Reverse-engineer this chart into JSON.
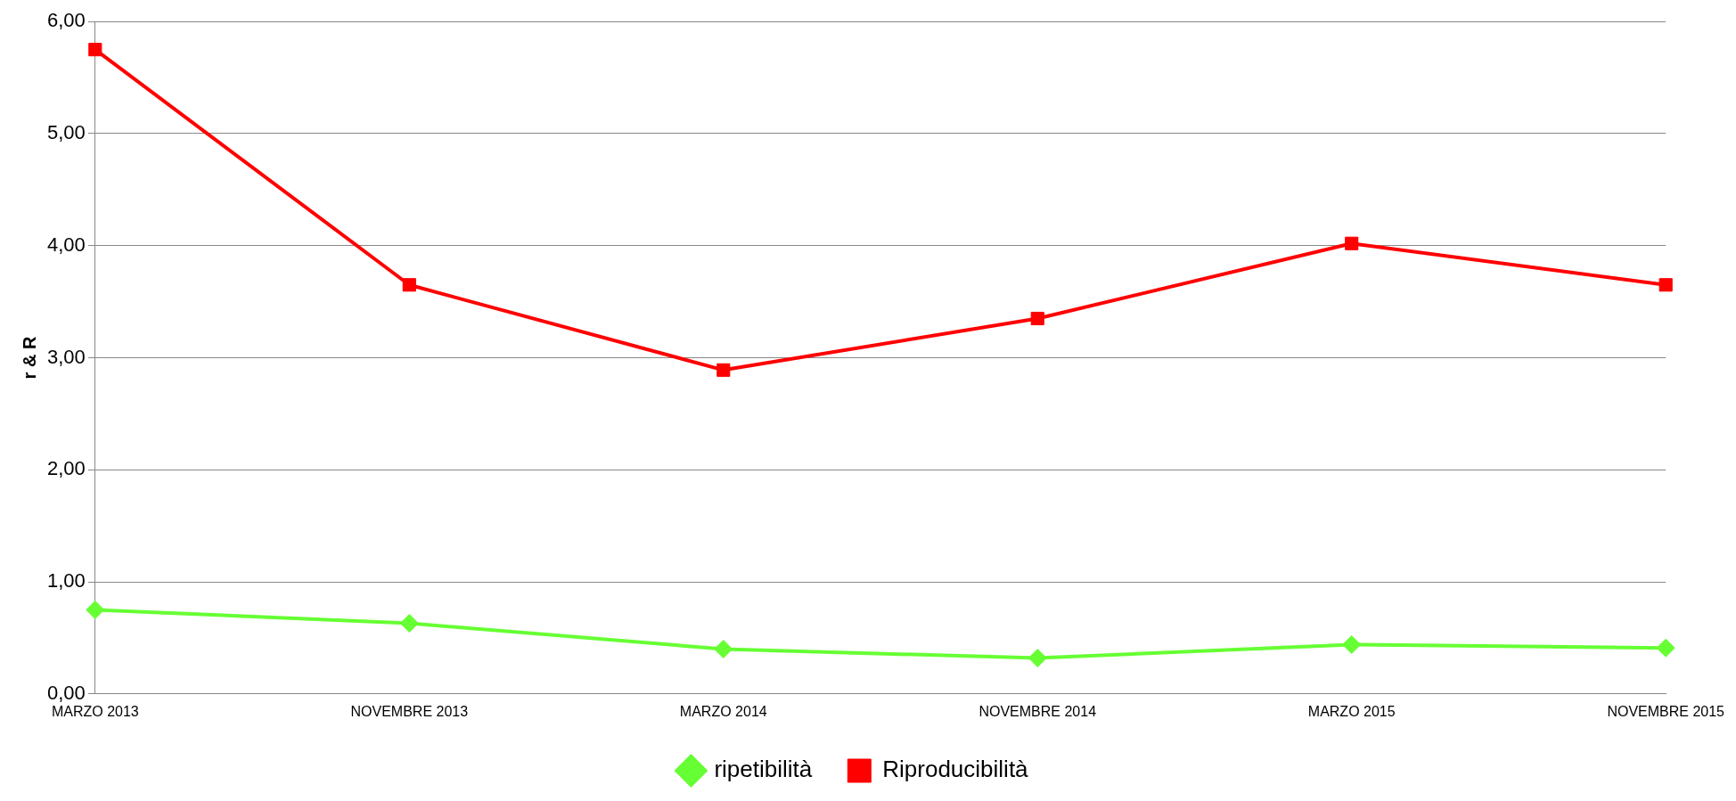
{
  "chart_data": {
    "type": "line",
    "ylabel": "r & R",
    "categories": [
      "MARZO 2013",
      "NOVEMBRE 2013",
      "MARZO 2014",
      "NOVEMBRE 2014",
      "MARZO 2015",
      "NOVEMBRE 2015"
    ],
    "series": [
      {
        "name": "ripetibilità",
        "color": "#66ff33",
        "marker": "diamond",
        "values": [
          0.75,
          0.63,
          0.4,
          0.32,
          0.44,
          0.41
        ]
      },
      {
        "name": "Riproducibilità",
        "color": "#ff0000",
        "marker": "square",
        "values": [
          5.75,
          3.65,
          2.89,
          3.35,
          4.02,
          3.65
        ]
      }
    ],
    "ylim": [
      0,
      6
    ],
    "yticks": [
      {
        "value": 0,
        "label": "0,00"
      },
      {
        "value": 1,
        "label": "1,00"
      },
      {
        "value": 2,
        "label": "2,00"
      },
      {
        "value": 3,
        "label": "3,00"
      },
      {
        "value": 4,
        "label": "4,00"
      },
      {
        "value": 5,
        "label": "5,00"
      },
      {
        "value": 6,
        "label": "6,00"
      }
    ],
    "grid": "y",
    "legend": "bottom",
    "line_style": "solid"
  }
}
